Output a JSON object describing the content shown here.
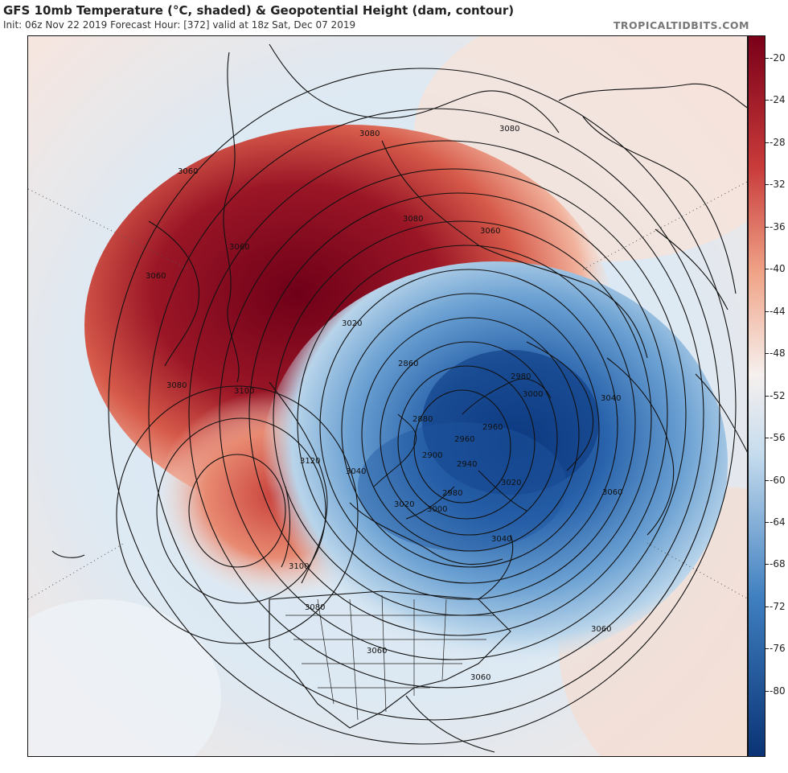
{
  "header": {
    "title": "GFS 10mb Temperature (°C, shaded) & Geopotential Height (dam, contour)",
    "subtitle": "Init: 06z Nov 22 2019   Forecast Hour: [372]   valid at 18z Sat, Dec 07 2019",
    "brand": "TROPICALTIDBITS.COM"
  },
  "colorbar": {
    "labels": [
      "-20",
      "-24",
      "-28",
      "-32",
      "-36",
      "-40",
      "-44",
      "-48",
      "-52",
      "-56",
      "-60",
      "-64",
      "-68",
      "-72",
      "-76",
      "-80"
    ],
    "colors": {
      "warm_dark": "#7a0019",
      "warm": "#c83a3a",
      "warm_light": "#f0a488",
      "neutral": "#f6f0ee",
      "cool_light": "#c6dcee",
      "cool": "#3f7fc0",
      "cool_dark": "#0a3375"
    }
  },
  "contour_labels": [
    {
      "text": "3080"
    },
    {
      "text": "3080"
    },
    {
      "text": "3060"
    },
    {
      "text": "3080"
    },
    {
      "text": "3060"
    },
    {
      "text": "3060"
    },
    {
      "text": "3060"
    },
    {
      "text": "3020"
    },
    {
      "text": "2860"
    },
    {
      "text": "2980"
    },
    {
      "text": "3000"
    },
    {
      "text": "3040"
    },
    {
      "text": "3080"
    },
    {
      "text": "3100"
    },
    {
      "text": "3120"
    },
    {
      "text": "3040"
    },
    {
      "text": "2880"
    },
    {
      "text": "2900"
    },
    {
      "text": "2960"
    },
    {
      "text": "2960"
    },
    {
      "text": "2940"
    },
    {
      "text": "2980"
    },
    {
      "text": "3000"
    },
    {
      "text": "3020"
    },
    {
      "text": "3020"
    },
    {
      "text": "3060"
    },
    {
      "text": "3040"
    },
    {
      "text": "3100"
    },
    {
      "text": "3080"
    },
    {
      "text": "3060"
    },
    {
      "text": "3060"
    },
    {
      "text": "3060"
    }
  ]
}
